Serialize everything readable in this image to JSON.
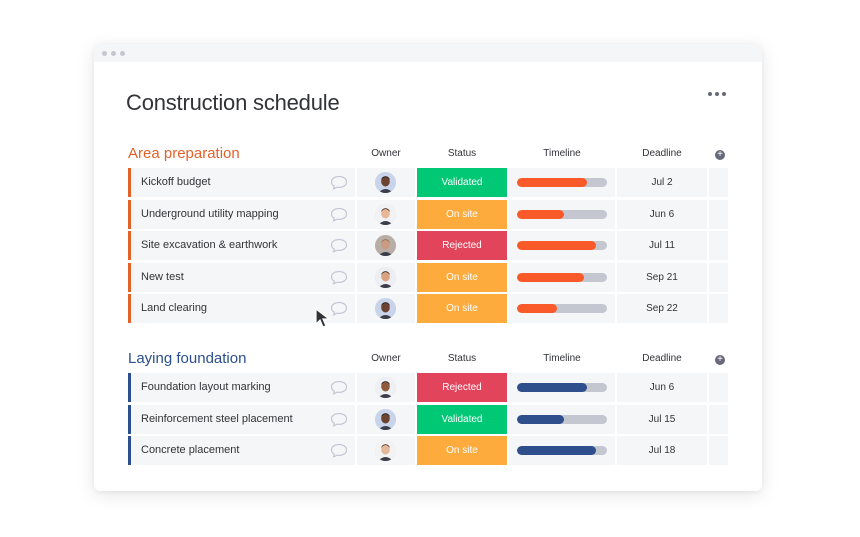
{
  "page": {
    "title": "Construction schedule"
  },
  "columns": {
    "owner": "Owner",
    "status": "Status",
    "timeline": "Timeline",
    "deadline": "Deadline"
  },
  "groups": [
    {
      "title": "Area preparation",
      "color": "#e2622a",
      "timeline_color": "#fa5a2a",
      "rows": [
        {
          "name": "Kickoff budget",
          "status": "Validated",
          "status_color": "#00c875",
          "timeline": 0.78,
          "deadline": "Jul 2",
          "avatar": "avatar-icon-a"
        },
        {
          "name": "Underground utility mapping",
          "status": "On site",
          "status_color": "#fdab3d",
          "timeline": 0.52,
          "deadline": "Jun 6",
          "avatar": "avatar-icon-b"
        },
        {
          "name": "Site excavation & earthwork",
          "status": "Rejected",
          "status_color": "#e2445c",
          "timeline": 0.88,
          "deadline": "Jul 11",
          "avatar": "avatar-icon-c"
        },
        {
          "name": "New test",
          "status": "On site",
          "status_color": "#fdab3d",
          "timeline": 0.74,
          "deadline": "Sep 21",
          "avatar": "avatar-icon-d"
        },
        {
          "name": "Land clearing",
          "status": "On site",
          "status_color": "#fdab3d",
          "timeline": 0.44,
          "deadline": "Sep 22",
          "avatar": "avatar-icon-a"
        }
      ]
    },
    {
      "title": "Laying foundation",
      "color": "#2b4f8e",
      "timeline_color": "#2f4f8c",
      "rows": [
        {
          "name": "Foundation layout marking",
          "status": "Rejected",
          "status_color": "#e2445c",
          "timeline": 0.78,
          "deadline": "Jun 6",
          "avatar": "avatar-icon-e"
        },
        {
          "name": "Reinforcement steel placement",
          "status": "Validated",
          "status_color": "#00c875",
          "timeline": 0.52,
          "deadline": "Jul 15",
          "avatar": "avatar-icon-a"
        },
        {
          "name": "Concrete placement",
          "status": "On site",
          "status_color": "#fdab3d",
          "timeline": 0.88,
          "deadline": "Jul 18",
          "avatar": "avatar-icon-f"
        }
      ]
    }
  ]
}
